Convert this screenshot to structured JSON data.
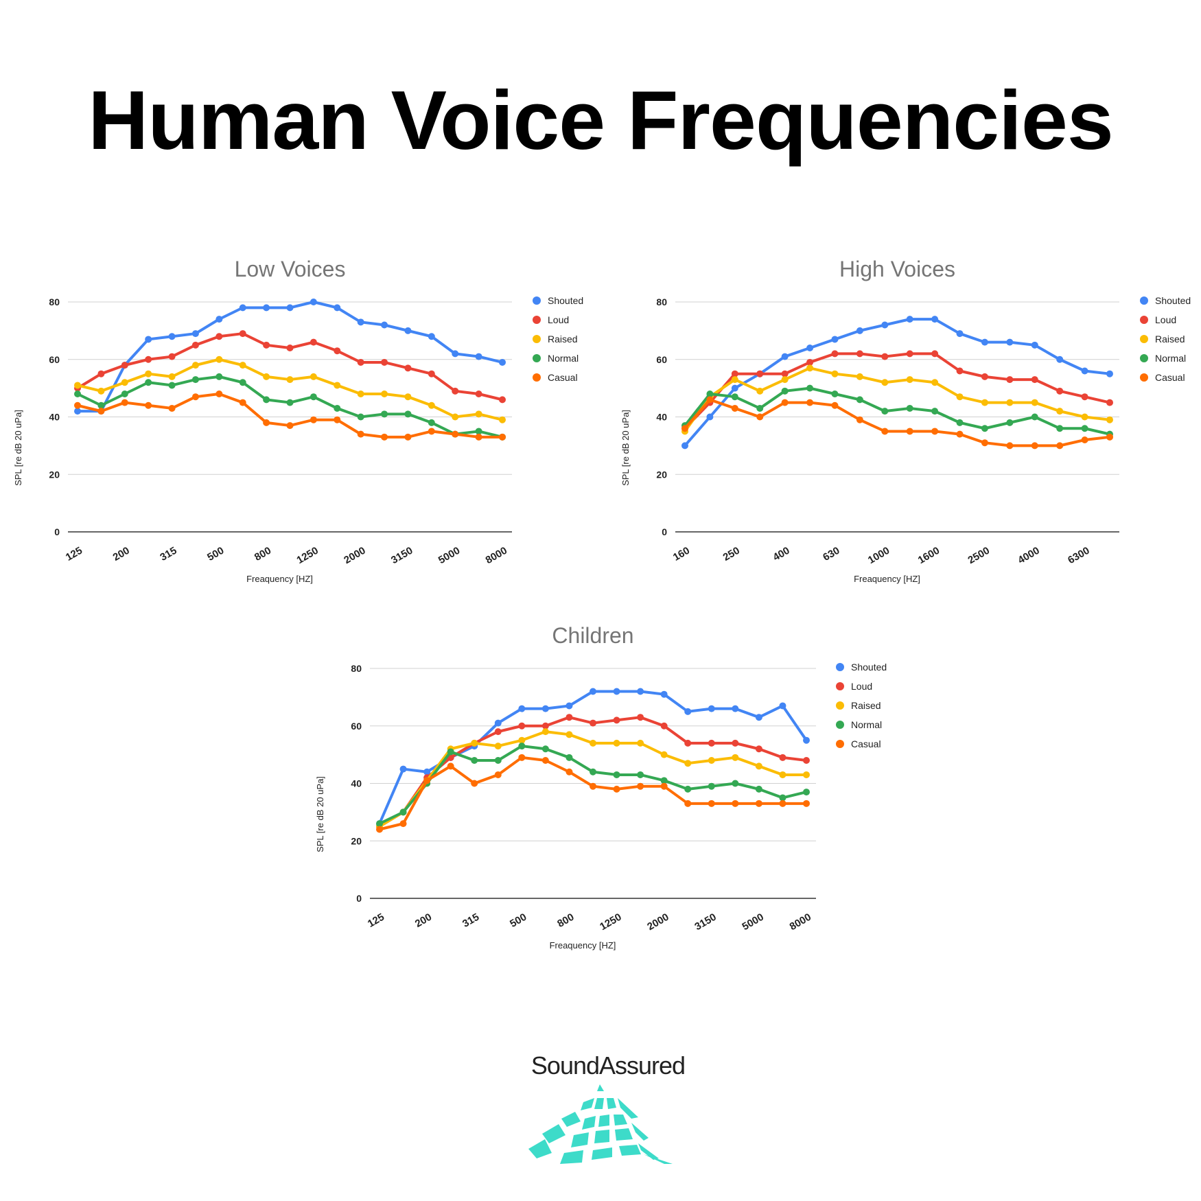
{
  "title": "Human Voice Frequencies",
  "brand": {
    "name": "SoundAssured",
    "logo_color": "#3ddbc9"
  },
  "colors": {
    "Shouted": "#4285f4",
    "Loud": "#ea4335",
    "Raised": "#fbbc04",
    "Normal": "#34a853",
    "Casual": "#ff6d01"
  },
  "chart_data": [
    {
      "type": "line",
      "title": "Low Voices",
      "xlabel": "Freaquency [HZ]",
      "ylabel": "SPL [re dB 20 uPa]",
      "ylim": [
        0,
        80
      ],
      "yticks": [
        0,
        20,
        40,
        60,
        80
      ],
      "grid": true,
      "legend": "right",
      "categories": [
        "125",
        "160",
        "200",
        "250",
        "315",
        "400",
        "500",
        "630",
        "800",
        "1000",
        "1250",
        "1600",
        "2000",
        "2500",
        "3150",
        "4000",
        "5000",
        "6300",
        "8000"
      ],
      "tick_labels": [
        "125",
        "200",
        "315",
        "500",
        "800",
        "1250",
        "2000",
        "3150",
        "5000",
        "8000"
      ],
      "series": [
        {
          "name": "Shouted",
          "values": [
            42,
            42,
            58,
            67,
            68,
            69,
            74,
            78,
            78,
            78,
            80,
            78,
            73,
            72,
            70,
            68,
            62,
            61,
            59
          ]
        },
        {
          "name": "Loud",
          "values": [
            50,
            55,
            58,
            60,
            61,
            65,
            68,
            69,
            65,
            64,
            66,
            63,
            59,
            59,
            57,
            55,
            49,
            48,
            46
          ]
        },
        {
          "name": "Raised",
          "values": [
            51,
            49,
            52,
            55,
            54,
            58,
            60,
            58,
            54,
            53,
            54,
            51,
            48,
            48,
            47,
            44,
            40,
            41,
            39
          ]
        },
        {
          "name": "Normal",
          "values": [
            48,
            44,
            48,
            52,
            51,
            53,
            54,
            52,
            46,
            45,
            47,
            43,
            40,
            41,
            41,
            38,
            34,
            35,
            33
          ]
        },
        {
          "name": "Casual",
          "values": [
            44,
            42,
            45,
            44,
            43,
            47,
            48,
            45,
            38,
            37,
            39,
            39,
            34,
            33,
            33,
            35,
            34,
            33,
            33
          ]
        }
      ]
    },
    {
      "type": "line",
      "title": "High Voices",
      "xlabel": "Freaquency [HZ]",
      "ylabel": "SPL [re dB 20 uPa]",
      "ylim": [
        0,
        80
      ],
      "yticks": [
        0,
        20,
        40,
        60,
        80
      ],
      "grid": true,
      "legend": "right",
      "categories": [
        "160",
        "200",
        "250",
        "315",
        "400",
        "500",
        "630",
        "800",
        "1000",
        "1250",
        "1600",
        "2000",
        "2500",
        "3150",
        "4000",
        "5000",
        "6300",
        "8000"
      ],
      "tick_labels": [
        "160",
        "250",
        "400",
        "630",
        "1000",
        "1600",
        "2500",
        "4000",
        "6300"
      ],
      "series": [
        {
          "name": "Shouted",
          "values": [
            30,
            40,
            50,
            55,
            61,
            64,
            67,
            70,
            72,
            74,
            74,
            69,
            66,
            66,
            65,
            60,
            56,
            55
          ]
        },
        {
          "name": "Loud",
          "values": [
            36,
            45,
            55,
            55,
            55,
            59,
            62,
            62,
            61,
            62,
            62,
            56,
            54,
            53,
            53,
            49,
            47,
            45
          ]
        },
        {
          "name": "Raised",
          "values": [
            35,
            47,
            53,
            49,
            53,
            57,
            55,
            54,
            52,
            53,
            52,
            47,
            45,
            45,
            45,
            42,
            40,
            39
          ]
        },
        {
          "name": "Normal",
          "values": [
            37,
            48,
            47,
            43,
            49,
            50,
            48,
            46,
            42,
            43,
            42,
            38,
            36,
            38,
            40,
            36,
            36,
            34
          ]
        },
        {
          "name": "Casual",
          "values": [
            36,
            46,
            43,
            40,
            45,
            45,
            44,
            39,
            35,
            35,
            35,
            34,
            31,
            30,
            30,
            30,
            32,
            33
          ]
        }
      ]
    },
    {
      "type": "line",
      "title": "Children",
      "xlabel": "Freaquency [HZ]",
      "ylabel": "SPL [re dB 20 uPa]",
      "ylim": [
        0,
        80
      ],
      "yticks": [
        0,
        20,
        40,
        60,
        80
      ],
      "grid": true,
      "legend": "right",
      "categories": [
        "125",
        "160",
        "200",
        "250",
        "315",
        "400",
        "500",
        "630",
        "800",
        "1000",
        "1250",
        "1600",
        "2000",
        "2500",
        "3150",
        "4000",
        "5000",
        "6300",
        "8000"
      ],
      "tick_labels": [
        "125",
        "200",
        "315",
        "500",
        "800",
        "1250",
        "2000",
        "3150",
        "5000",
        "8000"
      ],
      "series": [
        {
          "name": "Shouted",
          "values": [
            26,
            45,
            44,
            49,
            53,
            61,
            66,
            66,
            67,
            72,
            72,
            72,
            71,
            65,
            66,
            66,
            63,
            67,
            55
          ]
        },
        {
          "name": "Loud",
          "values": [
            25,
            30,
            42,
            49,
            54,
            58,
            60,
            60,
            63,
            61,
            62,
            63,
            60,
            54,
            54,
            54,
            52,
            49,
            48
          ]
        },
        {
          "name": "Raised",
          "values": [
            25,
            30,
            41,
            52,
            54,
            53,
            55,
            58,
            57,
            54,
            54,
            54,
            50,
            47,
            48,
            49,
            46,
            43,
            43
          ]
        },
        {
          "name": "Normal",
          "values": [
            26,
            30,
            40,
            51,
            48,
            48,
            53,
            52,
            49,
            44,
            43,
            43,
            41,
            38,
            39,
            40,
            38,
            35,
            37
          ]
        },
        {
          "name": "Casual",
          "values": [
            24,
            26,
            41,
            46,
            40,
            43,
            49,
            48,
            44,
            39,
            38,
            39,
            39,
            33,
            33,
            33,
            33,
            33,
            33
          ]
        }
      ]
    }
  ]
}
